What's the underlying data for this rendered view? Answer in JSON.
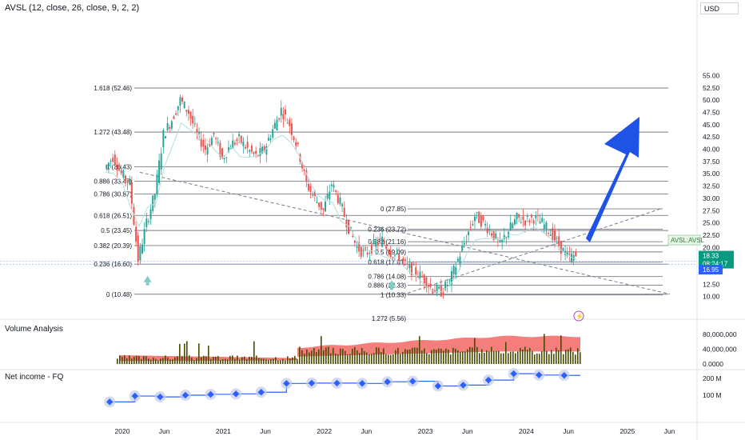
{
  "header": {
    "title": "AVSL (12, close, 26, close, 9, 2, 2)",
    "currency": "USD"
  },
  "panes": {
    "volume_label": "Volume Analysis",
    "netincome_label": "Net income - FQ"
  },
  "colors": {
    "up": "#26a69a",
    "down": "#ef5350",
    "fib_line": "#787b86",
    "arrow": "#1e53e5",
    "avsl_line": "#b2dfdb",
    "volume_area": "#ef5350",
    "volume_bar": "#4a4a00",
    "net_income": "#2962ff",
    "last_price_bg": "#089981",
    "stop_bg": "#2962ff"
  },
  "chart_data": [
    {
      "type": "candlestick",
      "title": "",
      "y_axis": {
        "range": [
          8.5,
          57.0
        ],
        "ticks": [
          "55.00",
          "52.50",
          "50.00",
          "47.50",
          "45.00",
          "42.50",
          "40.00",
          "37.50",
          "35.00",
          "32.50",
          "30.00",
          "27.50",
          "25.00",
          "22.50",
          "20.00",
          "17.50",
          "15.00",
          "12.50",
          "10.00"
        ]
      },
      "x_axis": {
        "ticks": [
          "2020",
          "Jun",
          "2021",
          "Jun",
          "2022",
          "Jun",
          "2023",
          "Jun",
          "2024",
          "Jun",
          "2025",
          "Jun"
        ]
      },
      "price_path": [
        {
          "date": "2019-11",
          "close": 36.0
        },
        {
          "date": "2019-12",
          "close": 38.5
        },
        {
          "date": "2020-01",
          "close": 35.0
        },
        {
          "date": "2020-02",
          "close": 33.0
        },
        {
          "date": "2020-03",
          "close": 17.5
        },
        {
          "date": "2020-04",
          "close": 25.0
        },
        {
          "date": "2020-05",
          "close": 31.0
        },
        {
          "date": "2020-06",
          "close": 43.0
        },
        {
          "date": "2020-07",
          "close": 46.0
        },
        {
          "date": "2020-08",
          "close": 50.0
        },
        {
          "date": "2020-09",
          "close": 47.5
        },
        {
          "date": "2020-10",
          "close": 43.0
        },
        {
          "date": "2020-11",
          "close": 40.0
        },
        {
          "date": "2020-12",
          "close": 43.0
        },
        {
          "date": "2021-01",
          "close": 38.0
        },
        {
          "date": "2021-02",
          "close": 41.0
        },
        {
          "date": "2021-03",
          "close": 42.0
        },
        {
          "date": "2021-04",
          "close": 40.0
        },
        {
          "date": "2021-05",
          "close": 38.5
        },
        {
          "date": "2021-06",
          "close": 40.0
        },
        {
          "date": "2021-07",
          "close": 44.0
        },
        {
          "date": "2021-08",
          "close": 48.0
        },
        {
          "date": "2021-09",
          "close": 45.0
        },
        {
          "date": "2021-10",
          "close": 40.0
        },
        {
          "date": "2021-11",
          "close": 33.0
        },
        {
          "date": "2021-12",
          "close": 30.0
        },
        {
          "date": "2022-01",
          "close": 27.5
        },
        {
          "date": "2022-02",
          "close": 33.0
        },
        {
          "date": "2022-03",
          "close": 29.0
        },
        {
          "date": "2022-04",
          "close": 24.0
        },
        {
          "date": "2022-05",
          "close": 20.0
        },
        {
          "date": "2022-06",
          "close": 18.5
        },
        {
          "date": "2022-07",
          "close": 20.5
        },
        {
          "date": "2022-08",
          "close": 21.5
        },
        {
          "date": "2022-09",
          "close": 19.0
        },
        {
          "date": "2022-10",
          "close": 18.0
        },
        {
          "date": "2022-11",
          "close": 16.0
        },
        {
          "date": "2022-12",
          "close": 15.0
        },
        {
          "date": "2023-01",
          "close": 13.5
        },
        {
          "date": "2023-02",
          "close": 11.5
        },
        {
          "date": "2023-03",
          "close": 11.0
        },
        {
          "date": "2023-04",
          "close": 13.0
        },
        {
          "date": "2023-05",
          "close": 17.5
        },
        {
          "date": "2023-06",
          "close": 22.0
        },
        {
          "date": "2023-07",
          "close": 26.5
        },
        {
          "date": "2023-08",
          "close": 25.0
        },
        {
          "date": "2023-09",
          "close": 23.0
        },
        {
          "date": "2023-10",
          "close": 20.5
        },
        {
          "date": "2023-11",
          "close": 23.5
        },
        {
          "date": "2023-12",
          "close": 26.0
        },
        {
          "date": "2024-01",
          "close": 25.5
        },
        {
          "date": "2024-02",
          "close": 26.0
        },
        {
          "date": "2024-03",
          "close": 25.0
        },
        {
          "date": "2024-04",
          "close": 23.0
        },
        {
          "date": "2024-05",
          "close": 20.5
        },
        {
          "date": "2024-06",
          "close": 18.0
        },
        {
          "date": "2024-07",
          "close": 18.3
        }
      ],
      "fib_upper": [
        {
          "label": "1.618 (52.46)",
          "value": 52.46
        },
        {
          "label": "1.272 (43.48)",
          "value": 43.48
        },
        {
          "label": "1 (36.43)",
          "value": 36.43
        },
        {
          "label": "0.886 (33.47)",
          "value": 33.47
        },
        {
          "label": "0.786 (30.87)",
          "value": 30.87
        },
        {
          "label": "0.618 (26.51)",
          "value": 26.51
        },
        {
          "label": "0.5 (23.45)",
          "value": 23.45
        },
        {
          "label": "0.382 (20.39)",
          "value": 20.39
        },
        {
          "label": "0.236 (16.60)",
          "value": 16.6
        },
        {
          "label": "0 (10.48)",
          "value": 10.48
        }
      ],
      "fib_lower": [
        {
          "label": "0 (27.85)",
          "value": 27.85
        },
        {
          "label": "0.236 (23.72)",
          "value": 23.72
        },
        {
          "label": "0.382 (21.16)",
          "value": 21.16
        },
        {
          "label": "0.5 (19.09)",
          "value": 19.09
        },
        {
          "label": "0.618 (17.01)",
          "value": 17.01
        },
        {
          "label": "0.786 (14.08)",
          "value": 14.08
        },
        {
          "label": "0.886 (12.33)",
          "value": 12.33
        },
        {
          "label": "1 (10.33)",
          "value": 10.33
        },
        {
          "label": "1.272 (5.56)",
          "value": 5.56
        }
      ],
      "price_tags": {
        "indicator": "AVSL:AVSL",
        "indicator_value": 21.5,
        "last_price": "18.33",
        "countdown": "08:24:17",
        "stop_value": "16.95"
      }
    },
    {
      "type": "bar",
      "title": "Volume Analysis",
      "y_axis": {
        "ticks": [
          "80,000,000",
          "40,000,000",
          "0.0000"
        ]
      },
      "note": "volume bars with rolling average area"
    },
    {
      "type": "line",
      "title": "Net income - FQ",
      "y_axis": {
        "ticks": [
          "200 M",
          "100 M"
        ]
      },
      "series": [
        {
          "date": "2019-Q4",
          "value": 60
        },
        {
          "date": "2020-Q1",
          "value": 95
        },
        {
          "date": "2020-Q2",
          "value": 90
        },
        {
          "date": "2020-Q3",
          "value": 100
        },
        {
          "date": "2020-Q4",
          "value": 105
        },
        {
          "date": "2021-Q1",
          "value": 108
        },
        {
          "date": "2021-Q2",
          "value": 118
        },
        {
          "date": "2021-Q3",
          "value": 170
        },
        {
          "date": "2021-Q4",
          "value": 172
        },
        {
          "date": "2022-Q1",
          "value": 172
        },
        {
          "date": "2022-Q2",
          "value": 170
        },
        {
          "date": "2022-Q3",
          "value": 180
        },
        {
          "date": "2022-Q4",
          "value": 183
        },
        {
          "date": "2023-Q1",
          "value": 155
        },
        {
          "date": "2023-Q2",
          "value": 160
        },
        {
          "date": "2023-Q3",
          "value": 190
        },
        {
          "date": "2023-Q4",
          "value": 228
        },
        {
          "date": "2024-Q1",
          "value": 220
        },
        {
          "date": "2024-Q2",
          "value": 218
        }
      ]
    }
  ]
}
